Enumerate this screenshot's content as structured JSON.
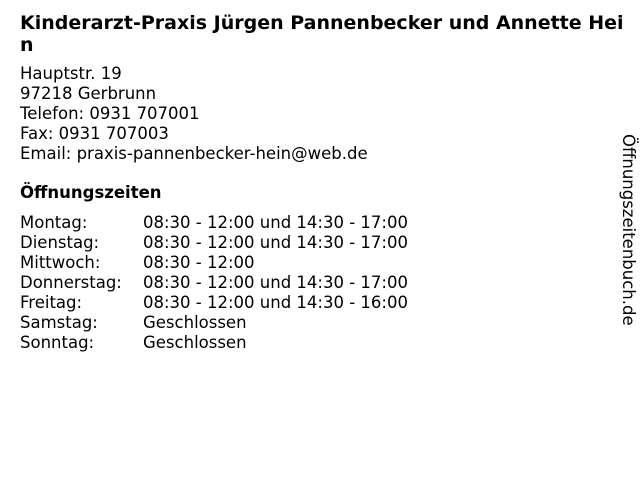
{
  "title": "Kinderarzt-Praxis Jürgen Pannenbecker und Annette Hein",
  "address": {
    "street": "Hauptstr. 19",
    "city": "97218 Gerbrunn",
    "phone": "Telefon: 0931 707001",
    "fax": "Fax: 0931 707003",
    "email": "Email: praxis-pannenbecker-hein@web.de"
  },
  "hours_heading": "Öffnungszeiten",
  "hours": [
    {
      "day": "Montag:",
      "time": "08:30 - 12:00 und 14:30 - 17:00"
    },
    {
      "day": "Dienstag:",
      "time": "08:30 - 12:00 und 14:30 - 17:00"
    },
    {
      "day": "Mittwoch:",
      "time": "08:30 - 12:00"
    },
    {
      "day": "Donnerstag:",
      "time": "08:30 - 12:00 und 14:30 - 17:00"
    },
    {
      "day": "Freitag:",
      "time": "08:30 - 12:00 und 14:30 - 16:00"
    },
    {
      "day": "Samstag:",
      "time": "Geschlossen"
    },
    {
      "day": "Sonntag:",
      "time": "Geschlossen"
    }
  ],
  "watermark": "Öffnungszeitenbuch.de"
}
